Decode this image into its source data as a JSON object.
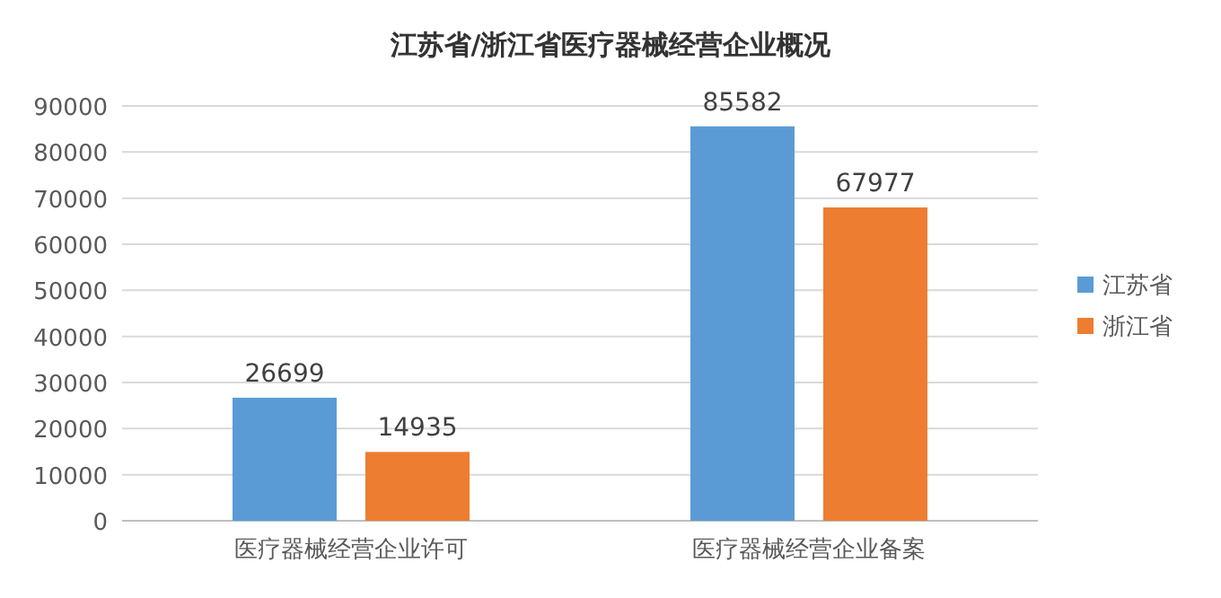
{
  "chart_data": {
    "type": "bar",
    "title": "江苏省/浙江省医疗器械经营企业概况",
    "categories": [
      "医疗器械经营企业许可",
      "医疗器械经营企业备案"
    ],
    "series": [
      {
        "name": "江苏省",
        "color": "#5b9bd5",
        "values": [
          26699,
          85582
        ]
      },
      {
        "name": "浙江省",
        "color": "#ed7d31",
        "values": [
          14935,
          67977
        ]
      }
    ],
    "ylim": [
      0,
      90000
    ],
    "yticks": [
      0,
      10000,
      20000,
      30000,
      40000,
      50000,
      60000,
      70000,
      80000,
      90000
    ],
    "grid": "y",
    "legend": "right",
    "data_labels": true
  }
}
